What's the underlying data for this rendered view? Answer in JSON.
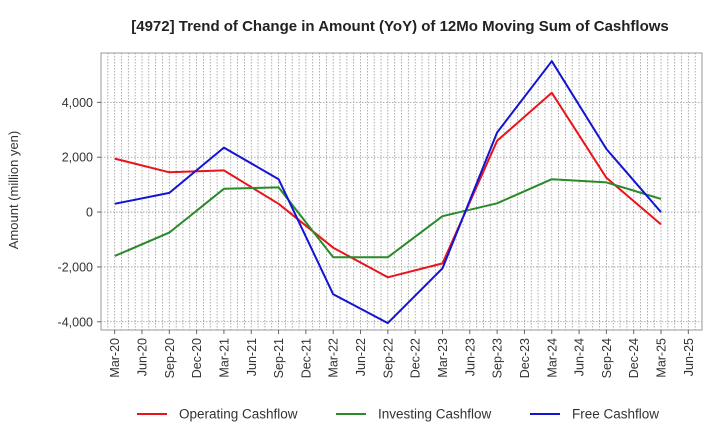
{
  "chart_data": {
    "type": "line",
    "title": "[4972]  Trend of Change in Amount (YoY) of 12Mo Moving Sum of Cashflows",
    "xlabel": "",
    "ylabel": "Amount (million yen)",
    "ylim": [
      -4300,
      5800
    ],
    "yticks": [
      -4000,
      -2000,
      0,
      2000,
      4000
    ],
    "ytick_labels": [
      "-4,000",
      "-2,000",
      "0",
      "2,000",
      "4,000"
    ],
    "grid": true,
    "legend_position": "bottom",
    "categories": [
      "Mar-20",
      "Jun-20",
      "Sep-20",
      "Dec-20",
      "Mar-21",
      "Jun-21",
      "Sep-21",
      "Dec-21",
      "Mar-22",
      "Jun-22",
      "Sep-22",
      "Dec-22",
      "Mar-23",
      "Jun-23",
      "Sep-23",
      "Dec-23",
      "Mar-24",
      "Jun-24",
      "Sep-24",
      "Dec-24",
      "Mar-25",
      "Jun-25"
    ],
    "series": [
      {
        "name": "Operating Cashflow",
        "color": "#e8141b",
        "values": [
          1950,
          null,
          1450,
          null,
          1520,
          null,
          300,
          null,
          -1300,
          null,
          -2380,
          null,
          -1870,
          null,
          2600,
          null,
          4350,
          null,
          1250,
          null,
          -450,
          null
        ]
      },
      {
        "name": "Investing Cashflow",
        "color": "#2a8a2a",
        "values": [
          -1600,
          null,
          -750,
          null,
          850,
          null,
          900,
          null,
          -1650,
          null,
          -1650,
          null,
          -150,
          null,
          320,
          null,
          1200,
          null,
          1080,
          null,
          480,
          null
        ]
      },
      {
        "name": "Free Cashflow",
        "color": "#1414d2",
        "values": [
          300,
          null,
          700,
          null,
          2350,
          null,
          1200,
          null,
          -3000,
          null,
          -4050,
          null,
          -2050,
          null,
          2900,
          null,
          5500,
          null,
          2300,
          null,
          0,
          null
        ]
      }
    ]
  }
}
